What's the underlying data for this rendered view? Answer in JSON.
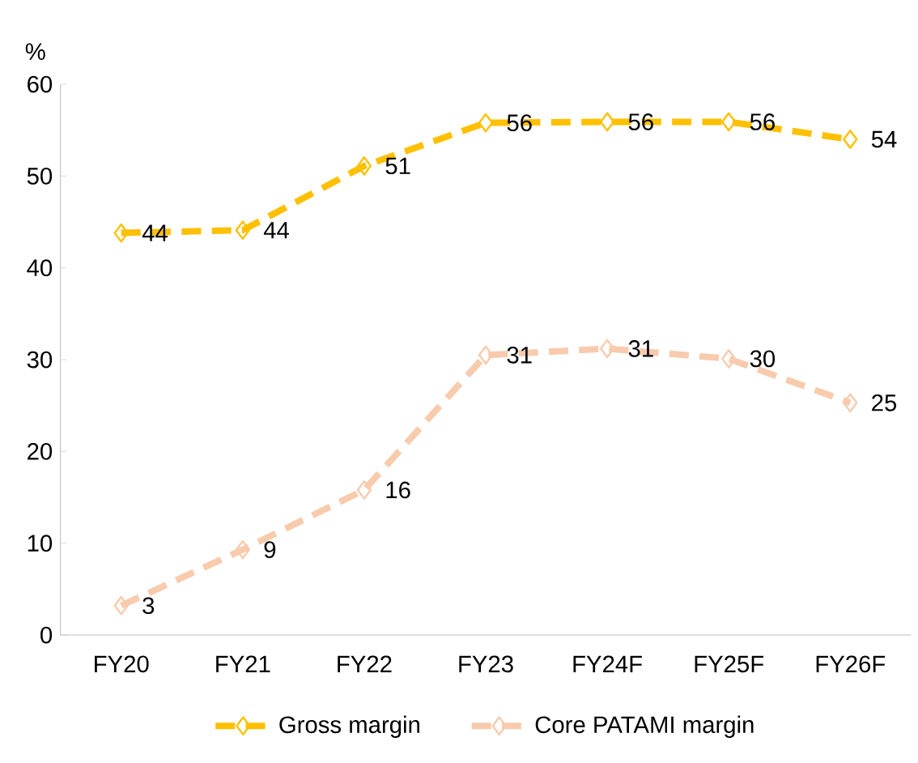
{
  "chart_data": {
    "type": "line",
    "ylabel": "%",
    "categories": [
      "FY20",
      "FY21",
      "FY22",
      "FY23",
      "FY24F",
      "FY25F",
      "FY26F"
    ],
    "series": [
      {
        "name": "Gross margin",
        "color": "#ffc000",
        "values": [
          43.8,
          44.1,
          51.1,
          55.8,
          55.9,
          55.9,
          54.0
        ],
        "value_labels": [
          "44",
          "44",
          "51",
          "56",
          "56",
          "56",
          "54"
        ]
      },
      {
        "name": "Core PATAMI margin",
        "color": "#f8cbad",
        "values": [
          3.2,
          9.3,
          15.8,
          30.5,
          31.2,
          30.1,
          25.3
        ],
        "value_labels": [
          "3",
          "9",
          "16",
          "31",
          "31",
          "30",
          "25"
        ]
      }
    ],
    "ylim": [
      0,
      60
    ],
    "yticks": [
      0,
      10,
      20,
      30,
      40,
      50,
      60
    ],
    "marker": "diamond",
    "line_style": "dashed",
    "legend": "bottom",
    "grid": false
  }
}
